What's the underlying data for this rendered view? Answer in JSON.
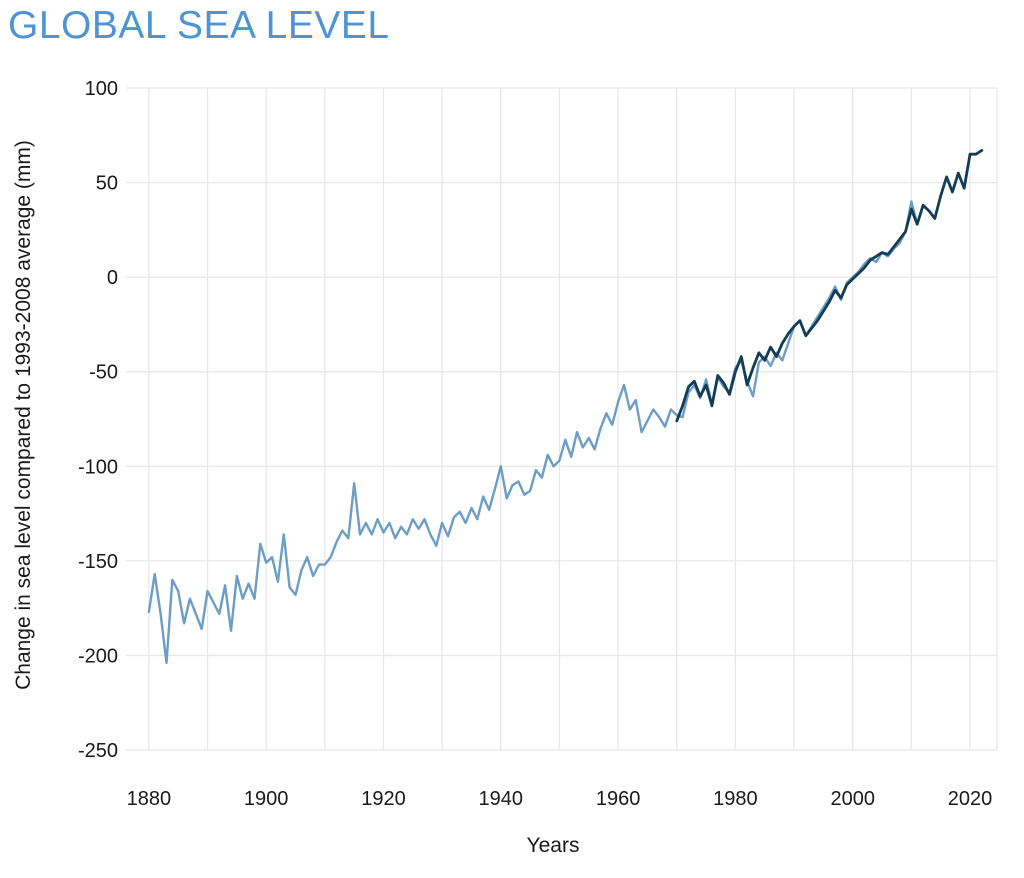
{
  "header": {
    "title": "GLOBAL SEA LEVEL"
  },
  "colors": {
    "title": "#4e94d4",
    "light_series": "#6b9dc6",
    "dark_series": "#133d55",
    "grid": "#e7e7e7",
    "axis_text": "#1a1a1a"
  },
  "chart_data": {
    "type": "line",
    "title": "GLOBAL SEA LEVEL",
    "xlabel": "Years",
    "ylabel": "Change in sea level compared to 1993-2008 average (mm)",
    "x_tick_labels": [
      1880,
      1900,
      1920,
      1940,
      1960,
      1980,
      2000,
      2020
    ],
    "x_gridline_years": [
      1880,
      1890,
      1900,
      1910,
      1920,
      1930,
      1940,
      1950,
      1960,
      1970,
      1980,
      1990,
      2000,
      2010,
      2020
    ],
    "y_ticks": [
      100,
      50,
      0,
      -50,
      -100,
      -150,
      -200,
      -250
    ],
    "xlim": [
      1876.1,
      2024.6
    ],
    "ylim": [
      -250,
      100
    ],
    "grid": true,
    "legend_position": "none",
    "series": [
      {
        "name": "light-blue-series",
        "color": "#6b9dc6",
        "stroke_width": 2.4,
        "start_year": 1880,
        "step": 1,
        "values": [
          -177,
          -157,
          -178,
          -204,
          -160,
          -166,
          -183,
          -170,
          -178,
          -186,
          -166,
          -172,
          -178,
          -163,
          -187,
          -158,
          -170,
          -162,
          -170,
          -141,
          -151,
          -148,
          -161,
          -136,
          -164,
          -168,
          -155,
          -148,
          -158,
          -152,
          -152,
          -148,
          -140,
          -134,
          -138,
          -109,
          -136,
          -130,
          -136,
          -128,
          -135,
          -130,
          -138,
          -132,
          -136,
          -128,
          -133,
          -128,
          -136,
          -142,
          -130,
          -137,
          -127,
          -124,
          -130,
          -122,
          -128,
          -116,
          -123,
          -112,
          -100,
          -117,
          -110,
          -108,
          -115,
          -113,
          -102,
          -106,
          -94,
          -100,
          -97,
          -86,
          -95,
          -82,
          -90,
          -85,
          -91,
          -80,
          -72,
          -78,
          -66,
          -57,
          -70,
          -65,
          -82,
          -76,
          -70,
          -74,
          -79,
          -70,
          -73,
          -74,
          -61,
          -57,
          -64,
          -54,
          -67,
          -53,
          -58,
          -61,
          -48,
          -44,
          -55,
          -63,
          -45,
          -42,
          -47,
          -40,
          -44,
          -35,
          -26,
          -23,
          -31,
          -26,
          -21,
          -16,
          -11,
          -5,
          -12,
          -3,
          0,
          3,
          7,
          10,
          8,
          13,
          11,
          15,
          18,
          24,
          40,
          28
        ]
      },
      {
        "name": "dark-blue-series",
        "color": "#133d55",
        "stroke_width": 2.8,
        "start_year": 1970,
        "step": 1,
        "values": [
          -76,
          -68,
          -58,
          -55,
          -63,
          -57,
          -68,
          -52,
          -56,
          -62,
          -50,
          -42,
          -57,
          -48,
          -40,
          -44,
          -37,
          -42,
          -35,
          -30,
          -26,
          -23,
          -31,
          -27,
          -23,
          -18,
          -13,
          -7,
          -11,
          -4,
          -1,
          2,
          5,
          9,
          11,
          13,
          12,
          16,
          20,
          24,
          36,
          28,
          38,
          35,
          31,
          43,
          53,
          45,
          55,
          47,
          65,
          65,
          67
        ]
      }
    ]
  }
}
